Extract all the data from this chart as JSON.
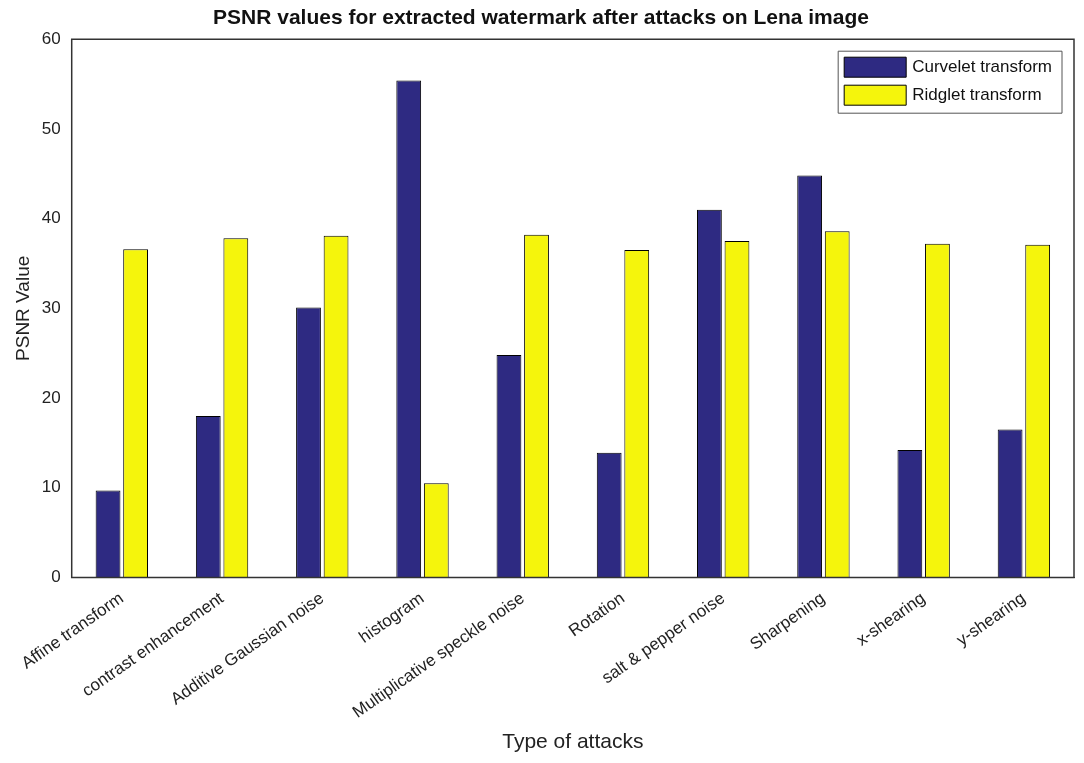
{
  "chart_data": {
    "type": "bar",
    "title": "PSNR values for extracted watermark after attacks on Lena image",
    "xlabel": "Type of attacks",
    "ylabel": "PSNR Value",
    "categories": [
      "Affine transform",
      "contrast enhancement",
      "Additive Gaussian noise",
      "histogram",
      "Multiplicative speckle noise",
      "Rotation",
      "salt & pepper noise",
      "Sharpening",
      "x-shearing",
      "y-shearing"
    ],
    "series": [
      {
        "name": "Curvelet transform",
        "color": "#2e2a82",
        "values": [
          9.7,
          18.0,
          30.1,
          55.4,
          24.8,
          13.9,
          41.0,
          44.8,
          14.2,
          16.5
        ]
      },
      {
        "name": "Ridglet transform",
        "color": "#f5f50c",
        "values": [
          36.6,
          37.8,
          38.1,
          10.5,
          38.2,
          36.5,
          37.5,
          38.6,
          37.2,
          37.1
        ]
      }
    ],
    "ylim": [
      0,
      60
    ],
    "yticks": [
      0,
      10,
      20,
      30,
      40,
      50,
      60
    ],
    "grid": false,
    "legend": "top right"
  }
}
